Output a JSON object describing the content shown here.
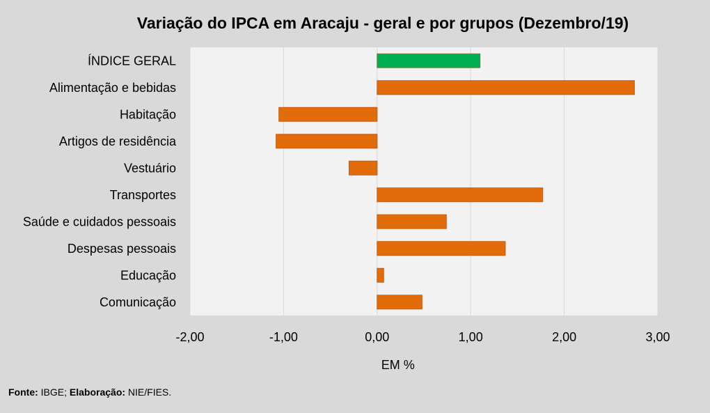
{
  "chart_data": {
    "type": "bar",
    "orientation": "horizontal",
    "title": "Variação do IPCA em Aracaju - geral e por grupos (Dezembro/19)",
    "xlabel": "EM %",
    "ylabel": "",
    "xlim": [
      -2,
      3
    ],
    "xticks": [
      -2,
      -1,
      0,
      1,
      2,
      3
    ],
    "xtick_labels": [
      "-2,00",
      "-1,00",
      "0,00",
      "1,00",
      "2,00",
      "3,00"
    ],
    "grid": true,
    "categories": [
      "ÍNDICE GERAL",
      "Alimentação e bebidas",
      "Habitação",
      "Artigos de residência",
      "Vestuário",
      "Transportes",
      "Saúde e cuidados pessoais",
      "Despesas pessoais",
      "Educação",
      "Comunicação"
    ],
    "values": [
      1.1,
      2.75,
      -1.05,
      -1.08,
      -0.3,
      1.77,
      0.74,
      1.37,
      0.07,
      0.48
    ],
    "colors": [
      "#00b050",
      "#e36c0a",
      "#e36c0a",
      "#e36c0a",
      "#e36c0a",
      "#e36c0a",
      "#e36c0a",
      "#e36c0a",
      "#e36c0a",
      "#e36c0a"
    ]
  },
  "source": {
    "label1": "Fonte:",
    "text1": " IBGE; ",
    "label2": "Elaboração:",
    "text2": " NIE/FIES."
  }
}
